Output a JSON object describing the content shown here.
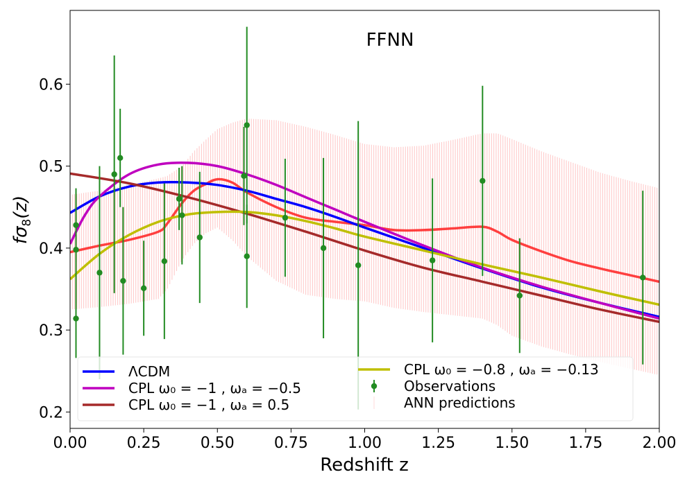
{
  "chart_data": {
    "type": "line",
    "title": "FFNN",
    "xlabel": "Redshift z",
    "ylabel": "fσ8(z)",
    "xlim": [
      0.0,
      2.0
    ],
    "ylim": [
      0.18,
      0.69
    ],
    "x_ticks": [
      0.0,
      0.25,
      0.5,
      0.75,
      1.0,
      1.25,
      1.5,
      1.75,
      2.0
    ],
    "x_tick_labels": [
      "0.00",
      "0.25",
      "0.50",
      "0.75",
      "1.00",
      "1.25",
      "1.50",
      "1.75",
      "2.00"
    ],
    "y_ticks": [
      0.2,
      0.3,
      0.4,
      0.5,
      0.6
    ],
    "y_tick_labels": [
      "0.2",
      "0.3",
      "0.4",
      "0.5",
      "0.6"
    ],
    "grid": false,
    "legend_placement": "lower-left",
    "series": [
      {
        "name": "ΛCDM",
        "legend_label": "ΛCDM",
        "color": "#0000ff",
        "kind": "line",
        "x": [
          0.0,
          0.1,
          0.2,
          0.3,
          0.4,
          0.5,
          0.6,
          0.7,
          0.8,
          0.9,
          1.0,
          1.2,
          1.4,
          1.6,
          1.8,
          2.0
        ],
        "y": [
          0.443,
          0.463,
          0.475,
          0.48,
          0.48,
          0.477,
          0.47,
          0.46,
          0.45,
          0.438,
          0.425,
          0.4,
          0.375,
          0.352,
          0.333,
          0.316
        ]
      },
      {
        "name": "CPL ω0 = −1, ωa = −0.5",
        "legend_label": "CPL ω₀ = −1 , ωₐ = −0.5",
        "color": "#bf00bf",
        "kind": "line",
        "x": [
          0.0,
          0.05,
          0.1,
          0.2,
          0.3,
          0.4,
          0.5,
          0.6,
          0.7,
          0.8,
          0.9,
          1.0,
          1.2,
          1.4,
          1.6,
          1.8,
          2.0
        ],
        "y": [
          0.405,
          0.44,
          0.463,
          0.49,
          0.502,
          0.504,
          0.5,
          0.49,
          0.477,
          0.462,
          0.447,
          0.432,
          0.403,
          0.376,
          0.353,
          0.333,
          0.314
        ]
      },
      {
        "name": "CPL ω0 = −1, ωa = 0.5",
        "legend_label": "CPL ω₀ = −1 , ωₐ = 0.5",
        "color": "#a52a2a",
        "kind": "line",
        "x": [
          0.0,
          0.2,
          0.4,
          0.6,
          0.8,
          1.0,
          1.2,
          1.4,
          1.6,
          1.8,
          2.0
        ],
        "y": [
          0.491,
          0.479,
          0.462,
          0.442,
          0.42,
          0.397,
          0.376,
          0.359,
          0.342,
          0.325,
          0.31
        ]
      },
      {
        "name": "CPL ω0 = −0.8, ωa = −0.13",
        "legend_label": "CPL ω₀ = −0.8 , ωₐ = −0.13",
        "color": "#bfbf00",
        "kind": "line",
        "x": [
          0.0,
          0.1,
          0.2,
          0.3,
          0.4,
          0.5,
          0.6,
          0.7,
          0.8,
          0.9,
          1.0,
          1.2,
          1.4,
          1.6,
          1.8,
          2.0
        ],
        "y": [
          0.362,
          0.393,
          0.416,
          0.432,
          0.441,
          0.444,
          0.444,
          0.44,
          0.433,
          0.424,
          0.414,
          0.397,
          0.38,
          0.364,
          0.347,
          0.331
        ]
      },
      {
        "name": "Observations",
        "legend_label": "Observations",
        "color": "#228b22",
        "kind": "errorbar",
        "x": [
          0.02,
          0.02,
          0.02,
          0.1,
          0.15,
          0.17,
          0.18,
          0.25,
          0.32,
          0.37,
          0.38,
          0.44,
          0.59,
          0.6,
          0.6,
          0.73,
          0.86,
          0.978,
          1.23,
          1.4,
          1.526,
          1.944
        ],
        "y": [
          0.428,
          0.398,
          0.314,
          0.37,
          0.49,
          0.51,
          0.36,
          0.351,
          0.384,
          0.46,
          0.44,
          0.413,
          0.488,
          0.55,
          0.39,
          0.437,
          0.4,
          0.379,
          0.385,
          0.482,
          0.342,
          0.364
        ],
        "yerr": [
          0.045,
          0.065,
          0.048,
          0.13,
          0.145,
          0.06,
          0.09,
          0.058,
          0.095,
          0.038,
          0.06,
          0.08,
          0.06,
          0.12,
          0.063,
          0.072,
          0.11,
          0.176,
          0.1,
          0.116,
          0.07,
          0.106
        ]
      },
      {
        "name": "ANN predictions",
        "legend_label": "ANN predictions",
        "color": "#ff2020",
        "band_color": "#ffb3b3",
        "kind": "line-with-band",
        "x": [
          0.0,
          0.1,
          0.2,
          0.3,
          0.33,
          0.38,
          0.42,
          0.46,
          0.5,
          0.55,
          0.6,
          0.7,
          0.8,
          0.9,
          1.0,
          1.1,
          1.2,
          1.3,
          1.4,
          1.45,
          1.5,
          1.6,
          1.7,
          1.8,
          1.9,
          2.0
        ],
        "y": [
          0.395,
          0.403,
          0.41,
          0.42,
          0.43,
          0.455,
          0.47,
          0.478,
          0.484,
          0.48,
          0.468,
          0.45,
          0.437,
          0.432,
          0.428,
          0.422,
          0.422,
          0.424,
          0.426,
          0.42,
          0.41,
          0.396,
          0.384,
          0.375,
          0.367,
          0.359
        ],
        "upper": [
          0.465,
          0.47,
          0.477,
          0.485,
          0.488,
          0.5,
          0.518,
          0.532,
          0.545,
          0.553,
          0.558,
          0.556,
          0.548,
          0.538,
          0.527,
          0.523,
          0.525,
          0.532,
          0.54,
          0.54,
          0.533,
          0.518,
          0.505,
          0.492,
          0.482,
          0.473
        ],
        "lower": [
          0.325,
          0.328,
          0.332,
          0.338,
          0.35,
          0.385,
          0.405,
          0.418,
          0.425,
          0.41,
          0.39,
          0.36,
          0.343,
          0.338,
          0.335,
          0.327,
          0.322,
          0.318,
          0.314,
          0.306,
          0.293,
          0.28,
          0.27,
          0.261,
          0.253,
          0.245
        ]
      }
    ],
    "legend": {
      "col1": [
        "ΛCDM",
        "CPL ω₀ = −1 , ωₐ = −0.5",
        "CPL ω₀ = −1 , ωₐ = 0.5"
      ],
      "col2": [
        "CPL ω₀ = −0.8 , ωₐ = −0.13",
        "Observations",
        "ANN predictions"
      ]
    }
  }
}
